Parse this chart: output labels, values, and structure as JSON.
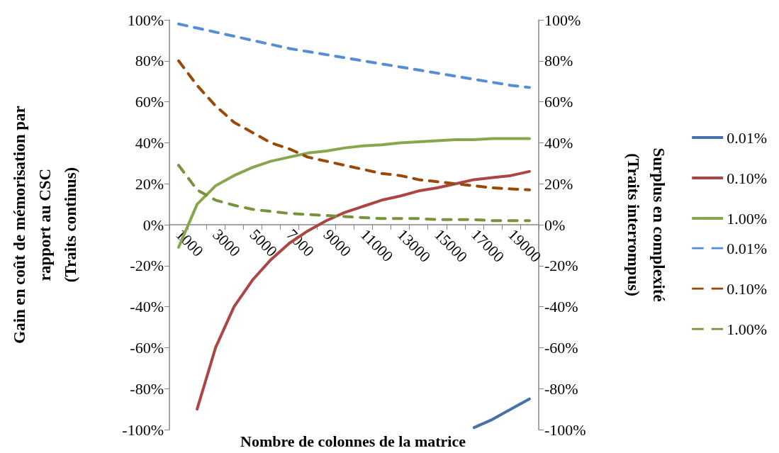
{
  "chart_data": {
    "type": "line",
    "xlabel": "Nombre de colonnes de la matrice",
    "ylabel": "Gain en coût de mémorisation par\nrapport au CSC\n(Traits continus)",
    "y2label": "Surplus en complexité\n(Traits interrompus)",
    "categories": [
      "1000",
      null,
      "3000",
      null,
      "5000",
      null,
      "7000",
      null,
      "9000",
      null,
      "11000",
      null,
      "13000",
      null,
      "15000",
      null,
      "17000",
      null,
      "19000",
      null
    ],
    "series": [
      {
        "name": "0.01%",
        "color": "#4572a7",
        "line_style": "solid",
        "values": [
          null,
          null,
          null,
          null,
          null,
          null,
          null,
          null,
          null,
          null,
          null,
          null,
          null,
          null,
          null,
          null,
          -99,
          -95,
          -90,
          -85
        ]
      },
      {
        "name": "0.10%",
        "color": "#aa4643",
        "line_style": "solid",
        "values": [
          null,
          -90,
          -60,
          -40,
          -27,
          -17,
          -9,
          -3,
          2,
          6,
          9,
          12,
          14,
          16.5,
          18,
          20,
          22,
          23,
          24,
          26
        ]
      },
      {
        "name": "1.00%",
        "color": "#89a54e",
        "line_style": "solid",
        "values": [
          -11,
          10,
          19,
          24,
          28,
          31,
          33,
          35,
          36,
          37.5,
          38.5,
          39,
          40,
          40.5,
          41,
          41.5,
          41.5,
          42,
          42,
          42
        ]
      },
      {
        "name": "0.01%",
        "color": "#558ed5",
        "line_style": "dashed",
        "axis": "y2",
        "values": [
          98,
          96,
          94,
          92,
          90,
          88,
          86,
          84.5,
          83,
          81.5,
          80,
          78.5,
          77,
          75.5,
          74,
          72.5,
          71,
          69.5,
          68,
          67
        ]
      },
      {
        "name": "0.10%",
        "color": "#984807",
        "line_style": "dashed",
        "axis": "y2",
        "values": [
          80,
          68,
          58,
          50,
          45,
          40,
          37,
          33,
          31,
          29,
          27,
          25,
          24,
          22,
          21,
          20,
          19,
          18,
          17.5,
          17
        ]
      },
      {
        "name": "1.00%",
        "color": "#77933c",
        "line_style": "dashed",
        "axis": "y2",
        "values": [
          29,
          17,
          12,
          9.5,
          7.5,
          6.5,
          5.5,
          5,
          4.5,
          4,
          3.5,
          3,
          3,
          3,
          2.5,
          2.5,
          2.5,
          2,
          2,
          2
        ]
      }
    ],
    "ylim": [
      -100,
      100
    ],
    "yticks": [
      {
        "value": -100,
        "label": "-100%"
      },
      {
        "value": -80,
        "label": "-80%"
      },
      {
        "value": -60,
        "label": "-60%"
      },
      {
        "value": -40,
        "label": "-40%"
      },
      {
        "value": -20,
        "label": "-20%"
      },
      {
        "value": 0,
        "label": "0%"
      },
      {
        "value": 20,
        "label": "20%"
      },
      {
        "value": 40,
        "label": "40%"
      },
      {
        "value": 60,
        "label": "60%"
      },
      {
        "value": 80,
        "label": "80%"
      },
      {
        "value": 100,
        "label": "100%"
      }
    ],
    "y2lim": [
      -100,
      100
    ],
    "y2ticks": [
      {
        "value": -100,
        "label": "-100%"
      },
      {
        "value": -80,
        "label": "-80%"
      },
      {
        "value": -60,
        "label": "-60%"
      },
      {
        "value": -40,
        "label": "-40%"
      },
      {
        "value": -20,
        "label": "-20%"
      },
      {
        "value": 0,
        "label": "0%"
      },
      {
        "value": 20,
        "label": "20%"
      },
      {
        "value": 40,
        "label": "40%"
      },
      {
        "value": 60,
        "label": "60%"
      },
      {
        "value": 80,
        "label": "80%"
      },
      {
        "value": 100,
        "label": "100%"
      }
    ],
    "grid": false,
    "legend": "right",
    "marker": "none"
  }
}
